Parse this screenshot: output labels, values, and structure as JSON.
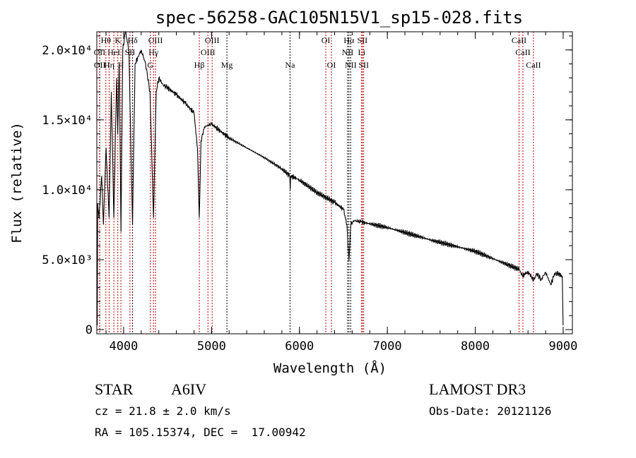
{
  "chart_data": {
    "type": "line",
    "title": "spec-56258-GAC105N15V1_sp15-028.fits",
    "xlabel": "Wavelength (Å)",
    "ylabel": "Flux (relative)",
    "xlim": [
      3695,
      9105
    ],
    "ylim": [
      -300,
      21300
    ],
    "xticks": [
      4000,
      5000,
      6000,
      7000,
      8000,
      9000
    ],
    "xtick_labels": [
      "4000",
      "5000",
      "6000",
      "7000",
      "8000",
      "9000"
    ],
    "yticks": [
      0,
      5000,
      10000,
      15000,
      20000
    ],
    "ytick_labels": [
      "0",
      "5.0×10³",
      "1.0×10⁴",
      "1.5×10⁴",
      "2.0×10⁴"
    ],
    "grid": false,
    "series": [
      {
        "name": "spectrum",
        "color": "#000000",
        "x": [
          3700,
          3705,
          3720,
          3750,
          3770,
          3800,
          3835,
          3860,
          3889,
          3920,
          3933,
          3950,
          3970,
          3990,
          4020,
          4060,
          4101,
          4130,
          4200,
          4250,
          4300,
          4340,
          4370,
          4400,
          4450,
          4500,
          4600,
          4700,
          4800,
          4840,
          4861,
          4880,
          4920,
          5000,
          5100,
          5200,
          5400,
          5600,
          5800,
          5890,
          5895,
          5900,
          6000,
          6200,
          6400,
          6500,
          6540,
          6563,
          6585,
          6620,
          6700,
          7000,
          7500,
          8000,
          8500,
          8540,
          8580,
          8620,
          8662,
          8700,
          8750,
          8800,
          8860,
          8900,
          8950,
          8990,
          9000
        ],
        "y": [
          300,
          9000,
          8000,
          11000,
          7500,
          13000,
          8000,
          17000,
          8000,
          18000,
          14000,
          19000,
          7000,
          20000,
          21300,
          20000,
          7500,
          19000,
          20000,
          19000,
          17000,
          8000,
          17000,
          18000,
          17500,
          17300,
          16800,
          16200,
          15500,
          13000,
          8000,
          13500,
          14500,
          14700,
          14200,
          13700,
          13000,
          12300,
          11500,
          11000,
          10000,
          11000,
          10700,
          9800,
          9100,
          8600,
          7500,
          4900,
          7500,
          7800,
          7700,
          7300,
          6400,
          5600,
          4300,
          3800,
          4100,
          4000,
          3500,
          4000,
          3600,
          4100,
          3200,
          4000,
          4000,
          3800,
          300
        ]
      }
    ],
    "line_markers": [
      {
        "label": "Hθ",
        "wave": 3798,
        "row": 1,
        "color": "#c00000"
      },
      {
        "label": "K",
        "wave": 3934,
        "row": 1,
        "color": "#c00000"
      },
      {
        "label": "Hδ",
        "wave": 4102,
        "row": 1,
        "color": "#000000"
      },
      {
        "label": "OIII",
        "wave": 4363,
        "row": 1,
        "color": "#c00000"
      },
      {
        "label": "OIII",
        "wave": 5007,
        "row": 1,
        "color": "#c00000"
      },
      {
        "label": "OI",
        "wave": 6300,
        "row": 1,
        "color": "#c00000"
      },
      {
        "label": "Hα",
        "wave": 6563,
        "row": 1,
        "color": "#000000"
      },
      {
        "label": "SII",
        "wave": 6716,
        "row": 1,
        "color": "#c00000"
      },
      {
        "label": "CaII",
        "wave": 8498,
        "row": 1,
        "color": "#c00000"
      },
      {
        "label": "OII",
        "wave": 3727,
        "row": 2,
        "color": "#c00000"
      },
      {
        "label": "HeI",
        "wave": 3889,
        "row": 2,
        "color": "#c00000"
      },
      {
        "label": "SII",
        "wave": 4072,
        "row": 2,
        "color": "#c00000"
      },
      {
        "label": "Hγ",
        "wave": 4340,
        "row": 2,
        "color": "#c00000"
      },
      {
        "label": "OIII",
        "wave": 4959,
        "row": 2,
        "color": "#c00000"
      },
      {
        "label": "NII",
        "wave": 6548,
        "row": 2,
        "color": "#000000"
      },
      {
        "label": "Li",
        "wave": 6708,
        "row": 2,
        "color": "#c00000"
      },
      {
        "label": "CaII",
        "wave": 8542,
        "row": 2,
        "color": "#c00000"
      },
      {
        "label": "OII",
        "wave": 3729,
        "row": 3,
        "color": "#c00000"
      },
      {
        "label": "Hη",
        "wave": 3835,
        "row": 3,
        "color": "#c00000"
      },
      {
        "label": "H",
        "wave": 3969,
        "row": 3,
        "color": "#c00000"
      },
      {
        "label": "G",
        "wave": 4304,
        "row": 3,
        "color": "#c00000"
      },
      {
        "label": "Hβ",
        "wave": 4861,
        "row": 3,
        "color": "#c00000"
      },
      {
        "label": "Mg",
        "wave": 5175,
        "row": 3,
        "color": "#000000"
      },
      {
        "label": "Na",
        "wave": 5893,
        "row": 3,
        "color": "#000000"
      },
      {
        "label": "OI",
        "wave": 6364,
        "row": 3,
        "color": "#c00000"
      },
      {
        "label": "NII",
        "wave": 6583,
        "row": 3,
        "color": "#000000"
      },
      {
        "label": "SII",
        "wave": 6731,
        "row": 3,
        "color": "#c00000"
      },
      {
        "label": "CaII",
        "wave": 8662,
        "row": 3,
        "color": "#c00000"
      }
    ]
  },
  "info": {
    "class": "STAR",
    "subclass": "A6IV",
    "survey": "LAMOST DR3",
    "cz": "cz = 21.8 ± 2.0 km/s",
    "obs_date": "Obs-Date: 20121126",
    "radec": "RA = 105.15374, DEC =  17.00942"
  }
}
